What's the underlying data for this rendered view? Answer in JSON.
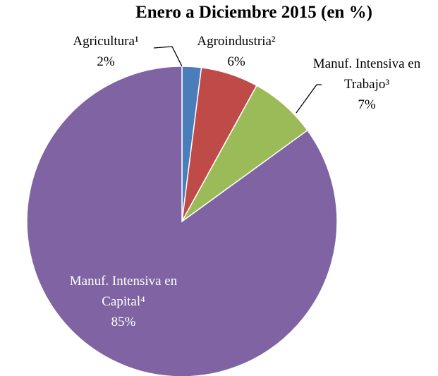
{
  "chart_data": {
    "type": "pie",
    "title": "Enero a Diciembre 2015 (en %)",
    "categories": [
      "Agricultura¹",
      "Agroindustria²",
      "Manuf. Intensiva en Trabajo³",
      "Manuf. Intensiva en Capital⁴"
    ],
    "values": [
      2,
      6,
      7,
      85
    ],
    "value_labels": [
      "2%",
      "6%",
      "7%",
      "85%"
    ],
    "colors": [
      "#4a7ebb",
      "#be4b48",
      "#9bbb59",
      "#7f63a2"
    ]
  }
}
